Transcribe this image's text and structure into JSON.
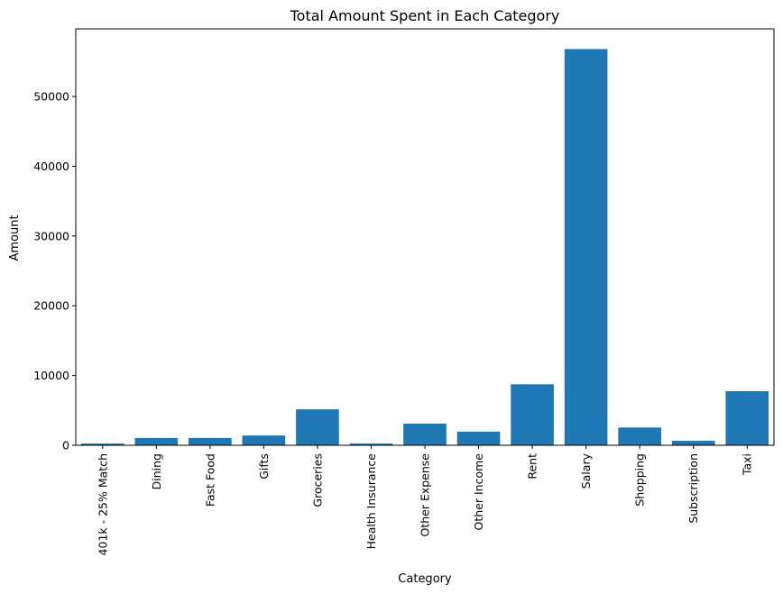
{
  "chart_data": {
    "type": "bar",
    "title": "Total Amount Spent in Each Category",
    "xlabel": "Category",
    "ylabel": "Amount",
    "categories": [
      "401k - 25% Match",
      "Dining",
      "Fast Food",
      "Gifts",
      "Groceries",
      "Health Insurance",
      "Other Expense",
      "Other Income",
      "Rent",
      "Salary",
      "Shopping",
      "Subscription",
      "Taxi"
    ],
    "values": [
      250,
      1050,
      1050,
      1400,
      5150,
      250,
      3100,
      1950,
      8750,
      56800,
      2550,
      650,
      7750
    ],
    "ylim": [
      0,
      59700
    ],
    "yticks": [
      0,
      10000,
      20000,
      30000,
      40000,
      50000
    ],
    "bar_color": "#1f77b4",
    "grid": false,
    "legend": "none"
  }
}
